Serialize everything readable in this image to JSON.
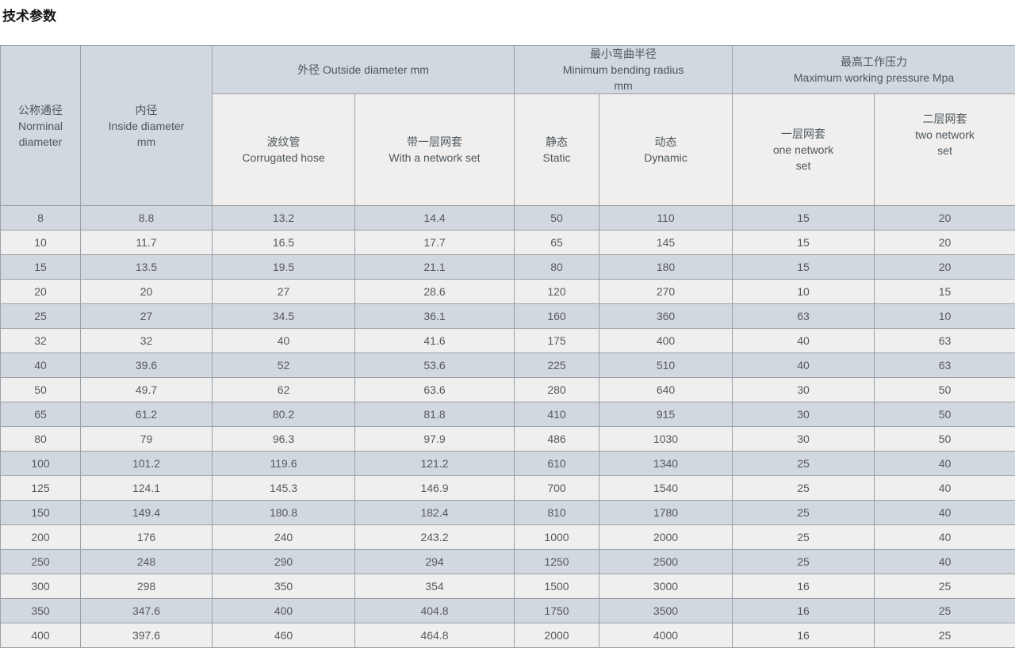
{
  "page": {
    "title": "技术参数"
  },
  "table": {
    "header": {
      "nominal_diameter": "公称通径\nNorminal\ndiameter",
      "inside_diameter": "内径\nInside diameter\nmm",
      "outside_diameter_group": "外径 Outside diameter mm",
      "min_bending_radius_group": "最小弯曲半径\nMinimum bending radius\nmm",
      "max_working_pressure_group": "最高工作压力\nMaximum working pressure Mpa",
      "corrugated_hose": "波纹管\nCorrugated hose",
      "with_network_set": "带一层网套\nWith a network set",
      "static": "静态\nStatic",
      "dynamic": "动态\nDynamic",
      "one_network_set": "一层网套\none network\nset",
      "two_network_set": "二层网套\ntwo network\nset"
    },
    "rows": [
      [
        "8",
        "8.8",
        "13.2",
        "14.4",
        "50",
        "110",
        "15",
        "20"
      ],
      [
        "10",
        "11.7",
        "16.5",
        "17.7",
        "65",
        "145",
        "15",
        "20"
      ],
      [
        "15",
        "13.5",
        "19.5",
        "21.1",
        "80",
        "180",
        "15",
        "20"
      ],
      [
        "20",
        "20",
        "27",
        "28.6",
        "120",
        "270",
        "10",
        "15"
      ],
      [
        "25",
        "27",
        "34.5",
        "36.1",
        "160",
        "360",
        "63",
        "10"
      ],
      [
        "32",
        "32",
        "40",
        "41.6",
        "175",
        "400",
        "40",
        "63"
      ],
      [
        "40",
        "39.6",
        "52",
        "53.6",
        "225",
        "510",
        "40",
        "63"
      ],
      [
        "50",
        "49.7",
        "62",
        "63.6",
        "280",
        "640",
        "30",
        "50"
      ],
      [
        "65",
        "61.2",
        "80.2",
        "81.8",
        "410",
        "915",
        "30",
        "50"
      ],
      [
        "80",
        "79",
        "96.3",
        "97.9",
        "486",
        "1030",
        "30",
        "50"
      ],
      [
        "100",
        "101.2",
        "119.6",
        "121.2",
        "610",
        "1340",
        "25",
        "40"
      ],
      [
        "125",
        "124.1",
        "145.3",
        "146.9",
        "700",
        "1540",
        "25",
        "40"
      ],
      [
        "150",
        "149.4",
        "180.8",
        "182.4",
        "810",
        "1780",
        "25",
        "40"
      ],
      [
        "200",
        "176",
        "240",
        "243.2",
        "1000",
        "2000",
        "25",
        "40"
      ],
      [
        "250",
        "248",
        "290",
        "294",
        "1250",
        "2500",
        "25",
        "40"
      ],
      [
        "300",
        "298",
        "350",
        "354",
        "1500",
        "3000",
        "16",
        "25"
      ],
      [
        "350",
        "347.6",
        "400",
        "404.8",
        "1750",
        "3500",
        "16",
        "25"
      ],
      [
        "400",
        "397.6",
        "460",
        "464.8",
        "2000",
        "4000",
        "16",
        "25"
      ]
    ]
  }
}
